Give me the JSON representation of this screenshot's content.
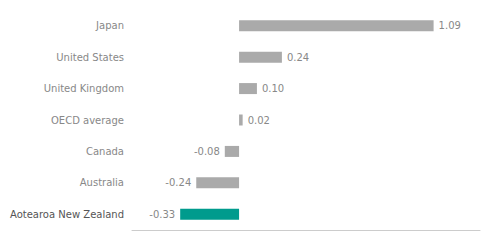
{
  "chart_data": {
    "type": "bar",
    "orientation": "horizontal",
    "categories": [
      "Aotearoa New Zealand",
      "Australia",
      "Canada",
      "OECD average",
      "United Kingdom",
      "United States",
      "Japan"
    ],
    "values": [
      -0.33,
      -0.24,
      -0.08,
      0.02,
      0.1,
      0.24,
      1.09
    ],
    "value_labels": [
      "-0.33",
      "-0.24",
      "-0.08",
      "0.02",
      "0.10",
      "0.24",
      "1.09"
    ],
    "colors": [
      "#009B8D",
      "#AAAAAA",
      "#AAAAAA",
      "#AAAAAA",
      "#AAAAAA",
      "#AAAAAA",
      "#AAAAAA"
    ],
    "xlim": [
      -0.6,
      1.35
    ],
    "xticks": [],
    "data_labels": true,
    "tick_labels": "y",
    "grid": false
  }
}
